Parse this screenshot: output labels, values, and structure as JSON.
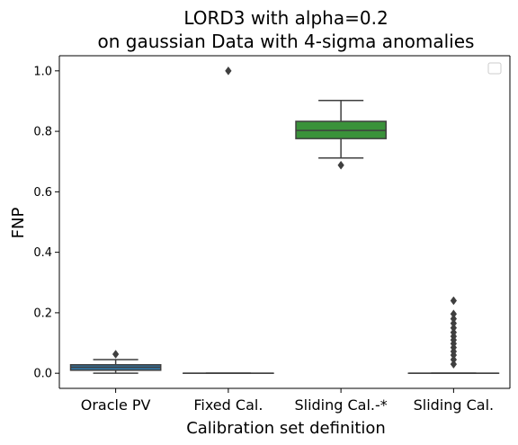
{
  "chart_data": {
    "type": "box",
    "title_line1": "LORD3 with alpha=0.2",
    "title_line2": "on gaussian Data with 4-sigma anomalies",
    "xlabel": "Calibration set definition",
    "ylabel": "FNP",
    "ylim": [
      -0.05,
      1.05
    ],
    "yticks": [
      0.0,
      0.2,
      0.4,
      0.6,
      0.8,
      1.0
    ],
    "ytick_labels": [
      "0.0",
      "0.2",
      "0.4",
      "0.6",
      "0.8",
      "1.0"
    ],
    "grid": false,
    "legend": "top-right (empty)",
    "categories": [
      "Oracle PV",
      "Fixed Cal.",
      "Sliding Cal.-*",
      "Sliding Cal."
    ],
    "boxes": [
      {
        "category": "Oracle PV",
        "color": "#3274a1",
        "q1": 0.01,
        "median": 0.02,
        "q3": 0.028,
        "whisker_low": 0.0,
        "whisker_high": 0.045,
        "outliers": [
          0.063
        ]
      },
      {
        "category": "Fixed Cal.",
        "color": "#e1812c",
        "q1": 0.0,
        "median": 0.0,
        "q3": 0.0,
        "whisker_low": 0.0,
        "whisker_high": 0.0,
        "outliers": [
          1.0
        ]
      },
      {
        "category": "Sliding Cal.-*",
        "color": "#3a923a",
        "q1": 0.776,
        "median": 0.803,
        "q3": 0.833,
        "whisker_low": 0.712,
        "whisker_high": 0.902,
        "outliers": [
          0.688
        ]
      },
      {
        "category": "Sliding Cal.",
        "color": "#c03d3e",
        "q1": 0.0,
        "median": 0.0,
        "q3": 0.0,
        "whisker_low": 0.0,
        "whisker_high": 0.0,
        "outliers": [
          0.03,
          0.045,
          0.06,
          0.072,
          0.085,
          0.098,
          0.11,
          0.122,
          0.135,
          0.15,
          0.165,
          0.18,
          0.196,
          0.24
        ]
      }
    ]
  }
}
